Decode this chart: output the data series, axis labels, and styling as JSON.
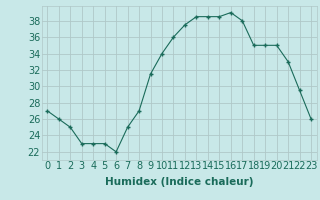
{
  "x": [
    0,
    1,
    2,
    3,
    4,
    5,
    6,
    7,
    8,
    9,
    10,
    11,
    12,
    13,
    14,
    15,
    16,
    17,
    18,
    19,
    20,
    21,
    22,
    23
  ],
  "y": [
    27,
    26,
    25,
    23,
    23,
    23,
    22,
    25,
    27,
    31.5,
    34,
    36,
    37.5,
    38.5,
    38.5,
    38.5,
    39,
    38,
    35,
    35,
    35,
    33,
    29.5,
    26
  ],
  "line_color": "#1a6b5a",
  "marker_color": "#1a6b5a",
  "bg_color": "#c8e8e8",
  "grid_color": "#b0c8c8",
  "xlabel": "Humidex (Indice chaleur)",
  "ylabel_ticks": [
    22,
    24,
    26,
    28,
    30,
    32,
    34,
    36,
    38
  ],
  "xlim": [
    -0.5,
    23.5
  ],
  "ylim": [
    21.0,
    39.8
  ],
  "xlabel_fontsize": 7.5,
  "tick_fontsize": 7.0
}
